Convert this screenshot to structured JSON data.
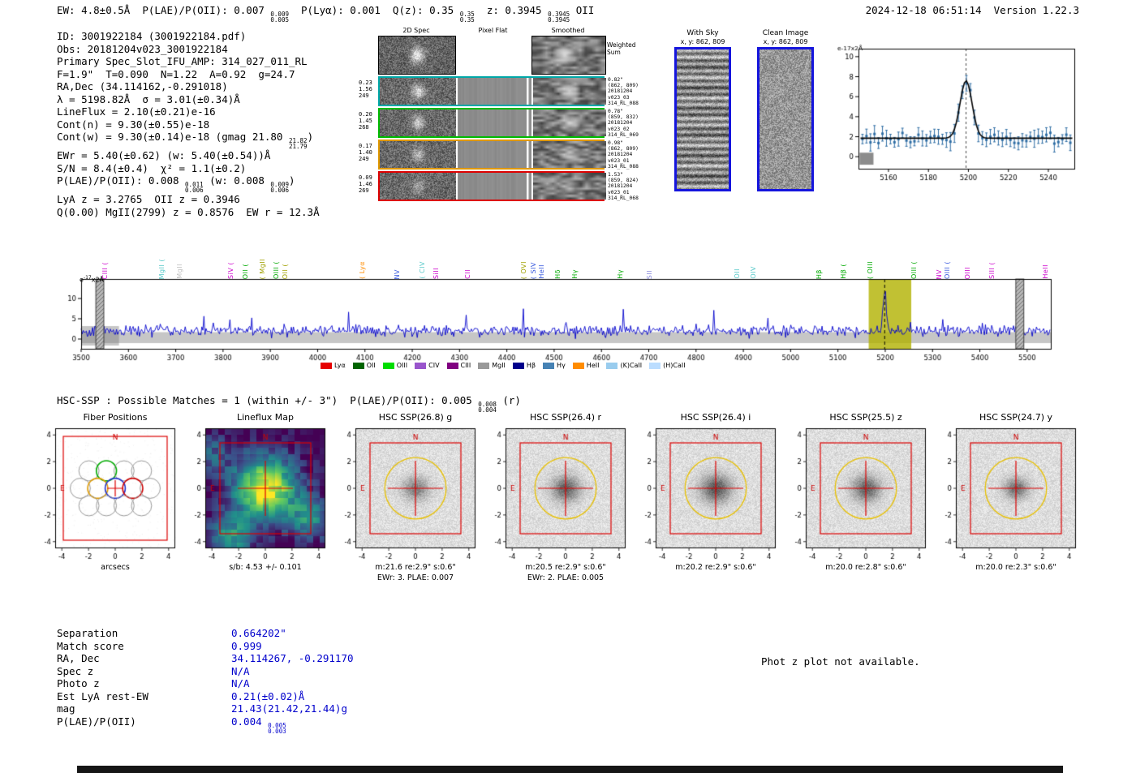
{
  "header": {
    "segs": [
      {
        "t": "EW: 4.8±0.5Å  P(LAE)/P(OII): 0.007 "
      },
      {
        "stk": [
          "0.009",
          "0.005"
        ]
      },
      {
        "t": "  P(Lyα): 0.001  Q(z): 0.35 "
      },
      {
        "stk": [
          "0.35",
          "0.35"
        ]
      },
      {
        "t": "  z: 0.3945 "
      },
      {
        "stk": [
          "0.3945",
          "0.3945"
        ]
      },
      {
        "t": " OII"
      }
    ],
    "timestamp": "2024-12-18 06:51:14",
    "version": "Version 1.22.3"
  },
  "info": {
    "lines": [
      [
        {
          "t": "ID: 3001922184 (3001922184.pdf)"
        }
      ],
      [
        {
          "t": "Obs: 20181204v023_3001922184"
        }
      ],
      [
        {
          "t": "Primary Spec_Slot_IFU_AMP: 314_027_011_RL"
        }
      ],
      [
        {
          "t": "F=1.9\"  T=0.090  N=1.22  A=0.92  g=24.7"
        }
      ],
      [
        {
          "t": "RA,Dec (34.114162,-0.291018)"
        }
      ],
      [
        {
          "t": "λ = 5198.82Å  σ = 3.01(±0.34)Å"
        }
      ],
      [
        {
          "t": "LineFlux = 2.10(±0.21)e-16"
        }
      ],
      [
        {
          "t": "Cont(n) = 9.30(±0.55)e-18"
        }
      ],
      [
        {
          "t": "Cont(w) = 9.30(±0.14)e-18 (gmag 21.80 "
        },
        {
          "stk": [
            "21.82",
            "21.79"
          ]
        },
        {
          "t": ")"
        }
      ],
      [
        {
          "t": "EWr = 5.40(±0.62) (w: 5.40(±0.54))Å"
        }
      ],
      [
        {
          "t": "S/N = 8.4(±0.4)  χ² = 1.1(±0.2)"
        }
      ],
      [
        {
          "t": "P(LAE)/P(OII): 0.008 "
        },
        {
          "stk": [
            "0.011",
            "0.006"
          ]
        },
        {
          "t": " (w: 0.008 "
        },
        {
          "stk": [
            "0.009",
            "0.006"
          ]
        },
        {
          "t": ")"
        }
      ],
      [
        {
          "t": "LyA z = 3.2765  OII z = 0.3946"
        }
      ],
      [
        {
          "t": "Q(0.00) MgII(2799) z = 0.8576  EW r = 12.3Å"
        }
      ]
    ]
  },
  "spec2d": {
    "titles": [
      "2D Spec",
      "Pixel Flat",
      "Smoothed"
    ],
    "weighted_label": [
      "Weighted",
      "Sum"
    ],
    "rows": [
      {
        "weights": [
          "0.23",
          "1.56",
          "249"
        ],
        "color": "#00a8a8",
        "ann": [
          "0.82\"",
          "(862, 809)",
          "20181204",
          "v023_03",
          "314_RL_088"
        ]
      },
      {
        "weights": [
          "0.20",
          "1.45",
          "268"
        ],
        "color": "#00bb00",
        "ann": [
          "0.78\"",
          "(859, 832)",
          "20181204",
          "v023_02",
          "314_RL_069"
        ]
      },
      {
        "weights": [
          "0.17",
          "1.40",
          "249"
        ],
        "color": "#e09800",
        "ann": [
          "0.98\"",
          "(862, 809)",
          "20181204",
          "v023_01",
          "314_RL_088"
        ]
      },
      {
        "weights": [
          "0.09",
          "1.46",
          "269"
        ],
        "color": "#dd0000",
        "ann": [
          "1.53\"",
          "(859, 824)",
          "20181204",
          "v023_01",
          "314_RL_068"
        ]
      }
    ]
  },
  "withsky": {
    "title": "With Sky",
    "xy": "x, y: 862, 809"
  },
  "clean": {
    "title": "Clean Image",
    "xy": "x, y: 862, 809"
  },
  "spectrum": {
    "units_pre": "e",
    "units_exp": "-17",
    "units_post": "x2Å"
  },
  "chart_data": [
    {
      "type": "scatter",
      "name": "emission-line-fit-zoom",
      "ylabel": "e-17x2Å",
      "xlim": [
        5145,
        5253
      ],
      "ylim": [
        -1.2,
        10.8
      ],
      "xticks": [
        5160,
        5180,
        5200,
        5220,
        5240
      ],
      "yticks": [
        0,
        2,
        4,
        6,
        8,
        10
      ],
      "gaussian": {
        "mu": 5198.82,
        "sigma": 3.01,
        "amplitude": 5.75,
        "continuum": 1.85
      },
      "point_color": "#2e6da4",
      "model_color": "#000000",
      "point_step": 2
    },
    {
      "type": "line",
      "name": "full-spectrum",
      "ylabel": "e-17x2Å",
      "xlim": [
        3500,
        5550
      ],
      "ylim": [
        -2.4,
        14.8
      ],
      "xticks": [
        3500,
        3600,
        3700,
        3800,
        3900,
        4000,
        4100,
        4200,
        4300,
        4400,
        4500,
        4600,
        4700,
        4800,
        4900,
        5000,
        5100,
        5200,
        5300,
        5400,
        5500
      ],
      "yticks": [
        0,
        5,
        10
      ],
      "continuum": 2.0,
      "peak": {
        "mu": 5198.82,
        "sigma": 3.5,
        "amplitude": 9.5
      },
      "noise_sigma": 1.1,
      "highlight": [
        5165,
        5255
      ],
      "highlight_color": "#b4b400",
      "masked": [
        [
          3531,
          3548
        ],
        [
          5476,
          5493
        ]
      ],
      "line_color": "#0000cc",
      "dashed_line_x": 5198.82
    }
  ],
  "spectrum_labels": [
    {
      "label": "CIII (",
      "wl": 3551,
      "color": "#cc00cc"
    },
    {
      "label": "MgII (",
      "wl": 3672,
      "color": "#55c8c8"
    },
    {
      "label": "MgII",
      "wl": 3710,
      "color": "#c0c0c0"
    },
    {
      "label": "SiV (",
      "wl": 3817,
      "color": "#cc00cc"
    },
    {
      "label": "OII (",
      "wl": 3848,
      "color": "#00aa00"
    },
    {
      "label": "( MgII",
      "wl": 3884,
      "color": "#a0a000"
    },
    {
      "label": "OIII (",
      "wl": 3914,
      "color": "#00aa00"
    },
    {
      "label": "OII (",
      "wl": 3932,
      "color": "#a0a000"
    },
    {
      "label": "( Lyα",
      "wl": 4095,
      "color": "#ff8c00"
    },
    {
      "label": "NV",
      "wl": 4169,
      "color": "#3355dd"
    },
    {
      "label": "( CIV",
      "wl": 4222,
      "color": "#55c8c8"
    },
    {
      "label": "SiII",
      "wl": 4252,
      "color": "#cc00cc"
    },
    {
      "label": "CII",
      "wl": 4318,
      "color": "#cc00cc"
    },
    {
      "label": "( OVI",
      "wl": 4437,
      "color": "#a0a000"
    },
    {
      "label": "( SIV",
      "wl": 4457,
      "color": "#3355dd"
    },
    {
      "label": "HeII",
      "wl": 4474,
      "color": "#3355dd"
    },
    {
      "label": "Hδ",
      "wl": 4508,
      "color": "#00aa00"
    },
    {
      "label": "Hγ",
      "wl": 4545,
      "color": "#00aa00"
    },
    {
      "label": "Hγ",
      "wl": 4641,
      "color": "#00aa00"
    },
    {
      "label": "SII",
      "wl": 4703,
      "color": "#8888dd"
    },
    {
      "label": "OII",
      "wl": 4887,
      "color": "#55c8c8"
    },
    {
      "label": "OIV",
      "wl": 4922,
      "color": "#55c8c8"
    },
    {
      "label": "Hβ",
      "wl": 5061,
      "color": "#00aa00"
    },
    {
      "label": "Hβ (",
      "wl": 5112,
      "color": "#00aa00"
    },
    {
      "label": "( OIII",
      "wl": 5170,
      "color": "#00aa00"
    },
    {
      "label": "OIII (",
      "wl": 5262,
      "color": "#00aa00"
    },
    {
      "label": "NV",
      "wl": 5315,
      "color": "#cc00cc"
    },
    {
      "label": "OIII (",
      "wl": 5332,
      "color": "#3355dd"
    },
    {
      "label": "OIII",
      "wl": 5375,
      "color": "#cc00cc"
    },
    {
      "label": "SIII (",
      "wl": 5426,
      "color": "#cc00cc"
    },
    {
      "label": "HeII",
      "wl": 5540,
      "color": "#cc00cc"
    }
  ],
  "legend": [
    {
      "label": "Lyα",
      "color": "#e60000"
    },
    {
      "label": "OII",
      "color": "#006400"
    },
    {
      "label": "OIII",
      "color": "#00dd00"
    },
    {
      "label": "CIV",
      "color": "#9955cc"
    },
    {
      "label": "CIII",
      "color": "#800080"
    },
    {
      "label": "MgII",
      "color": "#999999"
    },
    {
      "label": "Hβ",
      "color": "#00008b"
    },
    {
      "label": "Hγ",
      "color": "#4682b4"
    },
    {
      "label": "HeII",
      "color": "#ff8c00"
    },
    {
      "label": "(K)CaII",
      "color": "#99ccee"
    },
    {
      "label": "(H)CaII",
      "color": "#bbddff"
    }
  ],
  "hsc": {
    "header_segs": [
      {
        "t": "HSC-SSP : Possible Matches = 1 (within +/- 3\")  P(LAE)/P(OII): 0.005 "
      },
      {
        "stk": [
          "0.008",
          "0.004"
        ]
      },
      {
        "t": " (r)"
      }
    ],
    "xticks": [
      "-4",
      "-2",
      "0",
      "2",
      "4"
    ],
    "yticks": [
      "4",
      "2",
      "0",
      "-2",
      "-4"
    ],
    "compass": {
      "n": "N",
      "e": "E"
    },
    "panels": [
      {
        "title": "Fiber Positions",
        "type": "fiber",
        "captions": [
          "arcsecs"
        ]
      },
      {
        "title": "Lineflux Map",
        "type": "heat",
        "captions": [
          "s/b: 4.53 +/- 0.101"
        ]
      },
      {
        "title": "HSC SSP(26.8) g",
        "type": "img",
        "captions": [
          "m:21.6 re:2.9\" s:0.6\"",
          "EWr: 3. PLAE: 0.007"
        ]
      },
      {
        "title": "HSC SSP(26.4) r",
        "type": "img",
        "captions": [
          "m:20.5 re:2.9\" s:0.6\"",
          "EWr: 2. PLAE: 0.005"
        ]
      },
      {
        "title": "HSC SSP(26.4) i",
        "type": "img",
        "captions": [
          "m:20.2 re:2.9\" s:0.6\""
        ]
      },
      {
        "title": "HSC SSP(25.5) z",
        "type": "img",
        "captions": [
          "m:20.0 re:2.8\" s:0.6\""
        ]
      },
      {
        "title": "HSC SSP(24.7) y",
        "type": "img",
        "captions": [
          "m:20.0 re:2.3\" s:0.6\""
        ]
      }
    ]
  },
  "match_table": {
    "rows": [
      {
        "label": "Separation",
        "segs": [
          {
            "t": "0.664202\""
          }
        ]
      },
      {
        "label": "Match score",
        "segs": [
          {
            "t": "0.999"
          }
        ]
      },
      {
        "label": "RA, Dec",
        "segs": [
          {
            "t": "34.114267, -0.291170"
          }
        ]
      },
      {
        "label": "Spec z",
        "segs": [
          {
            "t": "N/A"
          }
        ]
      },
      {
        "label": "Photo z",
        "segs": [
          {
            "t": "N/A"
          }
        ]
      },
      {
        "label": "Est LyA rest-EW",
        "segs": [
          {
            "t": "0.21(±0.02)Å"
          }
        ]
      },
      {
        "label": "mag",
        "segs": [
          {
            "t": "21.43(21.42,21.44)g"
          }
        ]
      },
      {
        "label": "P(LAE)/P(OII)",
        "segs": [
          {
            "t": "0.004 "
          },
          {
            "stk": [
              "0.005",
              "0.003"
            ]
          }
        ]
      }
    ]
  },
  "photz_note": "Phot z plot not available."
}
